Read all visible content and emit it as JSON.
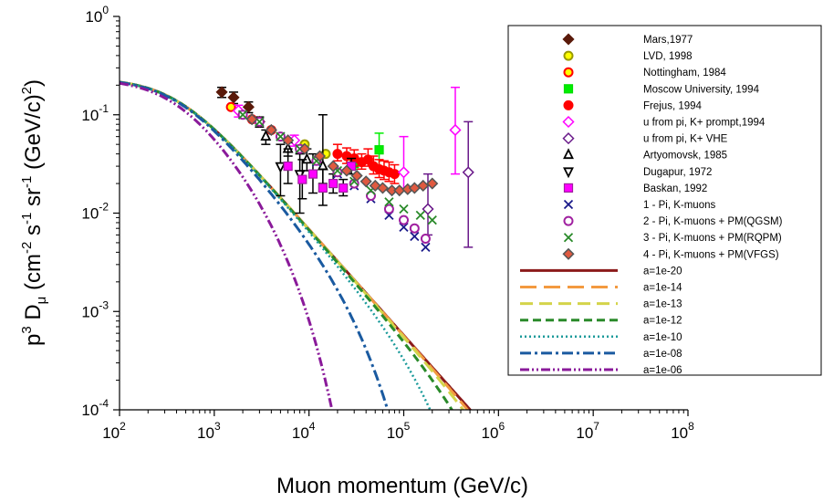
{
  "chart_data": {
    "type": "scatter",
    "xlabel": "Muon momentum (GeV/c)",
    "ylabel": "p3 Dμ (cm-2 s-1 sr-1 (GeV/c)2)",
    "ylabel_parts": {
      "p": "p",
      "p_exp": "3",
      "D": " D",
      "D_sub": "μ",
      "open": " (cm",
      "e1": "-2",
      "s": " s",
      "e2": "-1",
      "sr": " sr",
      "e3": "-1",
      "gev": " (GeV/c)",
      "e4": "2",
      ")": ")"
    },
    "x_scale": "log",
    "y_scale": "log",
    "xlim": [
      100,
      100000000
    ],
    "ylim": [
      0.0001,
      1
    ],
    "x_ticks": [
      {
        "base": "10",
        "exp": "2",
        "v": 100
      },
      {
        "base": "10",
        "exp": "3",
        "v": 1000
      },
      {
        "base": "10",
        "exp": "4",
        "v": 10000
      },
      {
        "base": "10",
        "exp": "5",
        "v": 100000
      },
      {
        "base": "10",
        "exp": "6",
        "v": 1000000
      },
      {
        "base": "10",
        "exp": "7",
        "v": 10000000
      },
      {
        "base": "10",
        "exp": "8",
        "v": 100000000
      }
    ],
    "y_ticks": [
      {
        "base": "10",
        "exp": "0",
        "v": 1
      },
      {
        "base": "10",
        "exp": "-1",
        "v": 0.1
      },
      {
        "base": "10",
        "exp": "-2",
        "v": 0.01
      },
      {
        "base": "10",
        "exp": "-3",
        "v": 0.001
      },
      {
        "base": "10",
        "exp": "-4",
        "v": 0.0001
      }
    ],
    "grid": false,
    "legend_position": "top-right",
    "series": [
      {
        "name": "Mars,1977",
        "kind": "points",
        "marker": "diamond",
        "color": "#5a1a0a",
        "fill": "#5a1a0a",
        "errbar_color": "#000000",
        "points": [
          [
            1200,
            0.17,
            0.15,
            0.19
          ],
          [
            1600,
            0.15,
            0.13,
            0.17
          ],
          [
            2300,
            0.12,
            0.105,
            0.135
          ],
          [
            3000,
            0.085,
            0.075,
            0.095
          ]
        ]
      },
      {
        "name": "LVD, 1998",
        "kind": "points",
        "marker": "circle",
        "color": "#999900",
        "fill": "#ffff00",
        "points": [
          [
            9000,
            0.05,
            null,
            null
          ],
          [
            15000,
            0.04,
            null,
            null
          ]
        ]
      },
      {
        "name": "Nottingham, 1984",
        "kind": "points",
        "marker": "circle",
        "color": "#ff0000",
        "fill": "#ffff00",
        "points": [
          [
            1500,
            0.12,
            null,
            null
          ],
          [
            2500,
            0.09,
            null,
            null
          ],
          [
            4000,
            0.07,
            null,
            null
          ]
        ]
      },
      {
        "name": "Moscow University, 1994",
        "kind": "points",
        "marker": "square",
        "color": "#00dd00",
        "fill": "#00ee00",
        "errbar_color": "#00ee00",
        "points": [
          [
            30000,
            0.032,
            0.028,
            0.037
          ],
          [
            55000,
            0.044,
            0.03,
            0.065
          ]
        ]
      },
      {
        "name": "Frejus, 1994",
        "kind": "points",
        "marker": "circle",
        "color": "#ff0000",
        "fill": "#ff0000",
        "errbar_color": "#ff0000",
        "points": [
          [
            20000,
            0.04,
            0.034,
            0.05
          ],
          [
            25000,
            0.038,
            0.032,
            0.046
          ],
          [
            30000,
            0.036,
            0.03,
            0.044
          ],
          [
            36000,
            0.033,
            0.028,
            0.04
          ],
          [
            42000,
            0.035,
            0.03,
            0.045
          ],
          [
            48000,
            0.03,
            0.025,
            0.038
          ],
          [
            55000,
            0.028,
            0.023,
            0.035
          ],
          [
            62000,
            0.027,
            0.022,
            0.034
          ],
          [
            70000,
            0.026,
            0.021,
            0.033
          ],
          [
            80000,
            0.025,
            0.02,
            0.031
          ]
        ]
      },
      {
        "name": "u from pi, K+ prompt,1994",
        "kind": "points",
        "marker": "diamond",
        "color": "#ff00ff",
        "fill": "#ffffff",
        "errbar_color": "#ff00ff",
        "points": [
          [
            1800,
            0.11,
            0.095,
            0.125
          ],
          [
            7000,
            0.055,
            0.048,
            0.062
          ],
          [
            100000,
            0.026,
            0.017,
            0.06
          ],
          [
            350000,
            0.07,
            0.025,
            0.19
          ]
        ]
      },
      {
        "name": "u from pi, K+ VHE",
        "kind": "points",
        "marker": "diamond",
        "color": "#6a1a8a",
        "fill": "#ffffff",
        "errbar_color": "#6a1a8a",
        "points": [
          [
            180000,
            0.011,
            0.006,
            0.025
          ],
          [
            480000,
            0.026,
            0.0045,
            0.085
          ]
        ]
      },
      {
        "name": "Artyomovsk, 1985",
        "kind": "points",
        "marker": "triangle",
        "color": "#000000",
        "fill": "#ffffff",
        "errbar_color": "#000000",
        "points": [
          [
            3500,
            0.06,
            0.05,
            0.07
          ],
          [
            6000,
            0.045,
            0.038,
            0.052
          ],
          [
            9500,
            0.035,
            0.027,
            0.045
          ],
          [
            14000,
            0.03,
            0.02,
            0.1
          ]
        ]
      },
      {
        "name": "Dugapur, 1972",
        "kind": "points",
        "marker": "triangle-down",
        "color": "#000000",
        "fill": "#ffffff",
        "errbar_color": "#000000",
        "points": [
          [
            5000,
            0.03,
            0.015,
            0.05
          ],
          [
            8000,
            0.025,
            0.01,
            0.04
          ]
        ]
      },
      {
        "name": "Baskan, 1992",
        "kind": "points",
        "marker": "square",
        "color": "#a020a0",
        "fill": "#ff00ff",
        "errbar_color": "#000000",
        "points": [
          [
            6000,
            0.03,
            0.02,
            0.045
          ],
          [
            8500,
            0.022,
            0.014,
            0.035
          ],
          [
            11000,
            0.025,
            0.016,
            0.04
          ],
          [
            14000,
            0.018,
            0.012,
            0.028
          ],
          [
            18000,
            0.02,
            0.016,
            0.025
          ],
          [
            23000,
            0.018,
            0.015,
            0.022
          ],
          [
            28000,
            0.03,
            0.025,
            0.036
          ]
        ]
      },
      {
        "name": "1 - Pi, K-muons",
        "kind": "points",
        "marker": "x",
        "color": "#1a1a8a",
        "points": [
          [
            2000,
            0.1
          ],
          [
            3000,
            0.085
          ],
          [
            5000,
            0.06
          ],
          [
            8000,
            0.045
          ],
          [
            12000,
            0.033
          ],
          [
            20000,
            0.025
          ],
          [
            30000,
            0.019
          ],
          [
            45000,
            0.014
          ],
          [
            70000,
            0.0095
          ],
          [
            100000,
            0.0072
          ],
          [
            130000,
            0.0058
          ],
          [
            170000,
            0.0045
          ]
        ]
      },
      {
        "name": "2 - Pi, K-muons + PM(QGSM)",
        "kind": "points",
        "marker": "circle",
        "color": "#a020a0",
        "fill": "#ffffff",
        "points": [
          [
            2000,
            0.1
          ],
          [
            3000,
            0.085
          ],
          [
            5000,
            0.06
          ],
          [
            8000,
            0.045
          ],
          [
            12000,
            0.034
          ],
          [
            20000,
            0.026
          ],
          [
            30000,
            0.02
          ],
          [
            45000,
            0.015
          ],
          [
            70000,
            0.011
          ],
          [
            100000,
            0.0085
          ],
          [
            130000,
            0.007
          ],
          [
            170000,
            0.0055
          ]
        ]
      },
      {
        "name": "3 - Pi, K-muons + PM(RQPM)",
        "kind": "points",
        "marker": "x",
        "color": "#2a8a2a",
        "points": [
          [
            2000,
            0.1
          ],
          [
            3000,
            0.085
          ],
          [
            5000,
            0.06
          ],
          [
            8000,
            0.045
          ],
          [
            12000,
            0.034
          ],
          [
            20000,
            0.027
          ],
          [
            30000,
            0.021
          ],
          [
            45000,
            0.017
          ],
          [
            70000,
            0.013
          ],
          [
            100000,
            0.011
          ],
          [
            150000,
            0.0095
          ],
          [
            200000,
            0.0085
          ]
        ]
      },
      {
        "name": "4  - Pi, K-muons + PM(VFGS)",
        "kind": "points",
        "marker": "diamond",
        "color": "#555555",
        "fill": "#e05a40",
        "points": [
          [
            2500,
            0.09
          ],
          [
            4000,
            0.07
          ],
          [
            6000,
            0.055
          ],
          [
            9000,
            0.045
          ],
          [
            13000,
            0.038
          ],
          [
            18000,
            0.03
          ],
          [
            25000,
            0.027
          ],
          [
            32000,
            0.024
          ],
          [
            40000,
            0.021
          ],
          [
            50000,
            0.019
          ],
          [
            60000,
            0.018
          ],
          [
            75000,
            0.017
          ],
          [
            90000,
            0.017
          ],
          [
            110000,
            0.0175
          ],
          [
            130000,
            0.018
          ],
          [
            160000,
            0.019
          ],
          [
            200000,
            0.02
          ]
        ]
      },
      {
        "name": "a=1e-20",
        "kind": "curve",
        "color": "#8b1a1a",
        "dash": "",
        "width": 3,
        "xc": 1e+300
      },
      {
        "name": "a=1e-14",
        "kind": "curve",
        "color": "#f39a40",
        "dash": "18,8",
        "width": 3,
        "xc": 8000000
      },
      {
        "name": "a=1e-13",
        "kind": "curve",
        "color": "#d4d44a",
        "dash": "14,7",
        "width": 3,
        "xc": 2500000
      },
      {
        "name": "a=1e-12",
        "kind": "curve",
        "color": "#2a8a2a",
        "dash": "9,5",
        "width": 3,
        "xc": 700000
      },
      {
        "name": "a=1e-10",
        "kind": "curve",
        "color": "#1a9a9a",
        "dash": "2,3",
        "width": 2.5,
        "xc": 180000
      },
      {
        "name": "a=1e-08",
        "kind": "curve",
        "color": "#1a5aa0",
        "dash": "12,4,3,4",
        "width": 3,
        "xc": 30000
      },
      {
        "name": "a=1e-06",
        "kind": "curve",
        "color": "#8a1a9a",
        "dash": "10,3,2,3,2,3",
        "width": 3,
        "xc": 4500
      }
    ]
  }
}
